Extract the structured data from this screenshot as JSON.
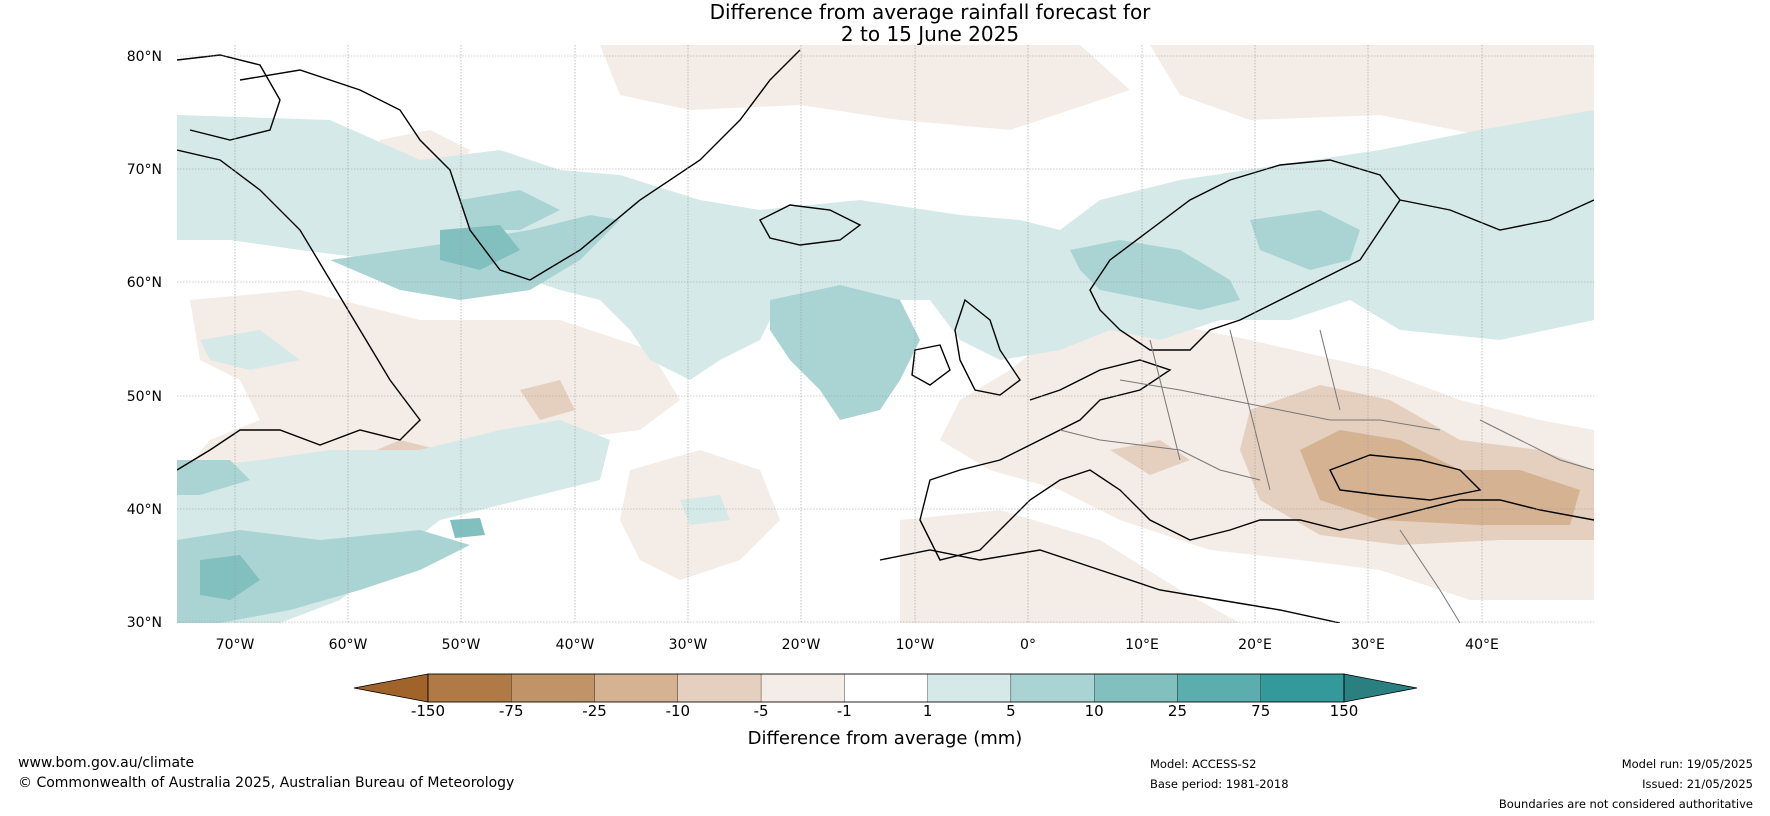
{
  "header": {
    "title_line1": "Difference from average rainfall forecast for",
    "title_line2": "2 to 15 June 2025"
  },
  "map": {
    "lat_labels": [
      "80°N",
      "70°N",
      "60°N",
      "50°N",
      "40°N",
      "30°N"
    ],
    "lon_labels": [
      "70°W",
      "60°W",
      "50°W",
      "40°W",
      "30°W",
      "20°W",
      "10°W",
      "0°",
      "10°E",
      "20°E",
      "30°E",
      "40°E"
    ]
  },
  "colorbar": {
    "title": "Difference from average (mm)",
    "boundaries": [
      "-150",
      "-75",
      "-25",
      "-10",
      "-5",
      "-1",
      "1",
      "5",
      "10",
      "25",
      "75",
      "150"
    ],
    "colors": [
      "#a0642a",
      "#b07a47",
      "#c19468",
      "#d4b292",
      "#e5d0bf",
      "#f4ece6",
      "#ffffff",
      "#d5e9e8",
      "#aad4d3",
      "#82c0bf",
      "#5caeae",
      "#33999a",
      "#2a8080"
    ]
  },
  "footer": {
    "website": "www.bom.gov.au/climate",
    "copyright": "© Commonwealth of Australia 2025, Australian Bureau of Meteorology",
    "model": "Model: ACCESS-S2",
    "base_period": "Base period: 1981-2018",
    "model_run": "Model run: 19/05/2025",
    "issued": "Issued: 21/05/2025",
    "disclaimer": "Boundaries are not considered authoritative"
  }
}
